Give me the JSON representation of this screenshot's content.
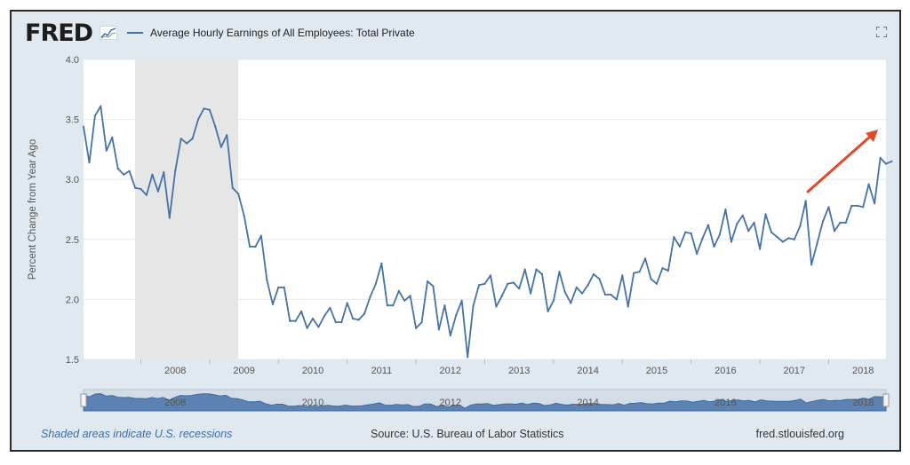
{
  "header": {
    "logo_text": "FRED",
    "series_name": "Average Hourly Earnings of All Employees: Total Private",
    "fullscreen_icon": "expand-icon"
  },
  "footer": {
    "recession_note": "Shaded areas indicate U.S. recessions",
    "source": "Source: U.S. Bureau of Labor Statistics",
    "site": "fred.stlouisfed.org"
  },
  "colors": {
    "line": "#4572a7",
    "recession": "#e6e6e6",
    "arrow": "#e04a2b",
    "grid": "#e8e8e8"
  },
  "chart_data": {
    "type": "line",
    "title": "Average Hourly Earnings of All Employees: Total Private",
    "ylabel": "Percent Change from Year Ago",
    "xlabel": "",
    "ylim": [
      1.5,
      4.0
    ],
    "y_ticks": [
      "1.5",
      "2.0",
      "2.5",
      "3.0",
      "3.5",
      "4.0"
    ],
    "x_ticks": [
      "2008",
      "2009",
      "2010",
      "2011",
      "2012",
      "2013",
      "2014",
      "2015",
      "2016",
      "2017",
      "2018"
    ],
    "x_range": [
      "2007-03",
      "2018-11"
    ],
    "recession": [
      "2007-12",
      "2009-06"
    ],
    "navigator_labels": [
      "2008",
      "2010",
      "2012",
      "2014",
      "2016",
      "2018"
    ],
    "grid": true,
    "annotation": "red upward arrow near end of series",
    "series": [
      {
        "name": "Average Hourly Earnings of All Employees: Total Private",
        "start": "2007-03",
        "frequency": "monthly",
        "values": [
          3.44,
          3.14,
          3.53,
          3.61,
          3.24,
          3.35,
          3.09,
          3.04,
          3.07,
          2.93,
          2.92,
          2.87,
          3.04,
          2.9,
          3.06,
          2.68,
          3.07,
          3.34,
          3.3,
          3.34,
          3.5,
          3.59,
          3.58,
          3.44,
          3.27,
          3.37,
          2.93,
          2.88,
          2.7,
          2.44,
          2.44,
          2.53,
          2.16,
          1.96,
          2.1,
          2.1,
          1.82,
          1.82,
          1.9,
          1.76,
          1.84,
          1.77,
          1.86,
          1.93,
          1.81,
          1.81,
          1.97,
          1.84,
          1.83,
          1.88,
          2.02,
          2.13,
          2.3,
          1.95,
          1.95,
          2.07,
          1.99,
          2.03,
          1.76,
          1.81,
          2.15,
          2.11,
          1.75,
          1.95,
          1.7,
          1.87,
          1.99,
          1.52,
          1.95,
          2.12,
          2.13,
          2.2,
          1.94,
          2.03,
          2.13,
          2.14,
          2.09,
          2.25,
          2.05,
          2.25,
          2.21,
          1.9,
          1.99,
          2.23,
          2.06,
          1.97,
          2.1,
          2.05,
          2.12,
          2.21,
          2.17,
          2.04,
          2.04,
          2.0,
          2.2,
          1.94,
          2.22,
          2.23,
          2.34,
          2.17,
          2.13,
          2.26,
          2.24,
          2.52,
          2.44,
          2.56,
          2.55,
          2.38,
          2.51,
          2.62,
          2.44,
          2.54,
          2.75,
          2.48,
          2.63,
          2.7,
          2.57,
          2.64,
          2.42,
          2.71,
          2.56,
          2.52,
          2.48,
          2.51,
          2.5,
          2.61,
          2.82,
          2.29,
          2.47,
          2.65,
          2.77,
          2.57,
          2.64,
          2.64,
          2.78,
          2.78,
          2.77,
          2.96,
          2.8,
          3.18,
          3.13,
          3.15
        ]
      }
    ]
  }
}
